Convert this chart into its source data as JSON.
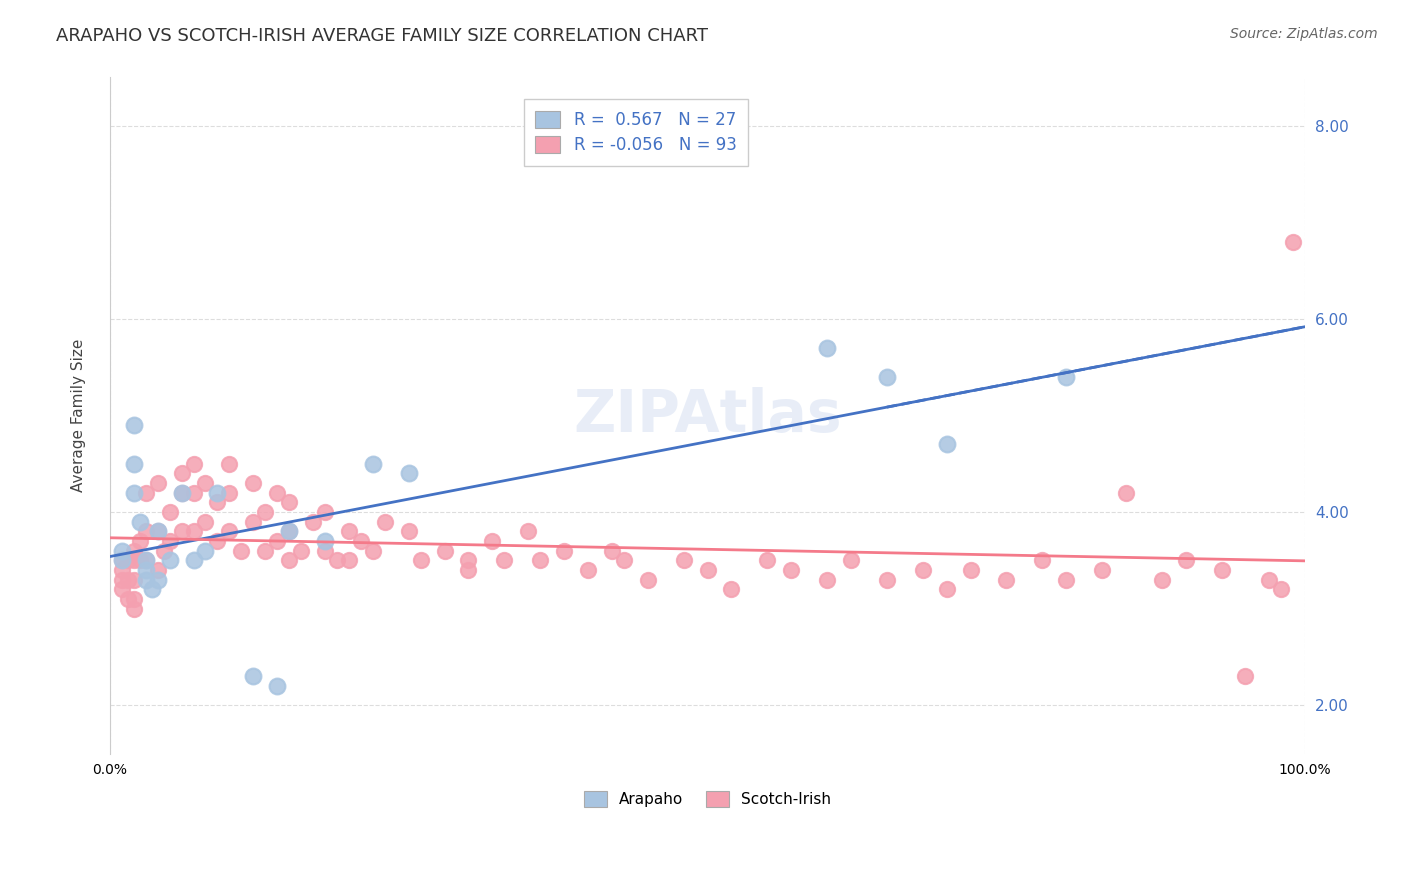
{
  "title": "ARAPAHO VS SCOTCH-IRISH AVERAGE FAMILY SIZE CORRELATION CHART",
  "source": "Source: ZipAtlas.com",
  "xlabel": "",
  "ylabel": "Average Family Size",
  "xlim": [
    0,
    1
  ],
  "ylim": [
    1.5,
    8.5
  ],
  "yticks": [
    2.0,
    4.0,
    6.0,
    8.0
  ],
  "ytick_labels": [
    "2.00",
    "4.00",
    "6.00",
    "8.00"
  ],
  "xtick_labels": [
    "0.0%",
    "100.0%"
  ],
  "background_color": "#ffffff",
  "grid_color": "#dddddd",
  "arapaho_color": "#a8c4e0",
  "scotch_irish_color": "#f4a0b0",
  "arapaho_line_color": "#4472c4",
  "scotch_irish_line_color": "#f47a8a",
  "watermark": "ZIPAtlas",
  "legend_r1": "R =  0.567   N = 27",
  "legend_r2": "R = -0.056   N = 93",
  "arapaho_r": 0.567,
  "arapaho_n": 27,
  "scotch_irish_r": -0.056,
  "scotch_irish_n": 93,
  "arapaho_points_x": [
    0.01,
    0.01,
    0.02,
    0.02,
    0.02,
    0.025,
    0.03,
    0.03,
    0.03,
    0.035,
    0.04,
    0.04,
    0.05,
    0.06,
    0.07,
    0.08,
    0.09,
    0.12,
    0.14,
    0.15,
    0.18,
    0.22,
    0.25,
    0.6,
    0.65,
    0.7,
    0.8
  ],
  "arapaho_points_y": [
    3.6,
    3.5,
    4.9,
    4.5,
    4.2,
    3.9,
    3.5,
    3.4,
    3.3,
    3.2,
    3.8,
    3.3,
    3.5,
    4.2,
    3.5,
    3.6,
    4.2,
    2.3,
    2.2,
    3.8,
    3.7,
    4.5,
    4.4,
    5.7,
    5.4,
    4.7,
    5.4
  ],
  "scotch_irish_points_x": [
    0.01,
    0.01,
    0.01,
    0.01,
    0.015,
    0.015,
    0.015,
    0.02,
    0.02,
    0.02,
    0.02,
    0.02,
    0.025,
    0.025,
    0.03,
    0.03,
    0.03,
    0.04,
    0.04,
    0.04,
    0.045,
    0.05,
    0.05,
    0.06,
    0.06,
    0.06,
    0.07,
    0.07,
    0.07,
    0.08,
    0.08,
    0.09,
    0.09,
    0.1,
    0.1,
    0.1,
    0.11,
    0.12,
    0.12,
    0.13,
    0.13,
    0.14,
    0.14,
    0.15,
    0.15,
    0.15,
    0.16,
    0.17,
    0.18,
    0.18,
    0.19,
    0.2,
    0.2,
    0.21,
    0.22,
    0.23,
    0.25,
    0.26,
    0.28,
    0.3,
    0.3,
    0.32,
    0.33,
    0.35,
    0.36,
    0.38,
    0.4,
    0.42,
    0.43,
    0.45,
    0.48,
    0.5,
    0.52,
    0.55,
    0.57,
    0.6,
    0.62,
    0.65,
    0.68,
    0.7,
    0.72,
    0.75,
    0.78,
    0.8,
    0.83,
    0.85,
    0.88,
    0.9,
    0.93,
    0.95,
    0.97,
    0.98,
    0.99
  ],
  "scotch_irish_points_y": [
    3.5,
    3.4,
    3.3,
    3.2,
    3.5,
    3.3,
    3.1,
    3.6,
    3.5,
    3.3,
    3.1,
    3.0,
    3.7,
    3.5,
    4.2,
    3.8,
    3.5,
    4.3,
    3.8,
    3.4,
    3.6,
    4.0,
    3.7,
    4.4,
    4.2,
    3.8,
    4.5,
    4.2,
    3.8,
    4.3,
    3.9,
    4.1,
    3.7,
    4.5,
    4.2,
    3.8,
    3.6,
    4.3,
    3.9,
    4.0,
    3.6,
    4.2,
    3.7,
    4.1,
    3.8,
    3.5,
    3.6,
    3.9,
    4.0,
    3.6,
    3.5,
    3.8,
    3.5,
    3.7,
    3.6,
    3.9,
    3.8,
    3.5,
    3.6,
    3.5,
    3.4,
    3.7,
    3.5,
    3.8,
    3.5,
    3.6,
    3.4,
    3.6,
    3.5,
    3.3,
    3.5,
    3.4,
    3.2,
    3.5,
    3.4,
    3.3,
    3.5,
    3.3,
    3.4,
    3.2,
    3.4,
    3.3,
    3.5,
    3.3,
    3.4,
    4.2,
    3.3,
    3.5,
    3.4,
    2.3,
    3.3,
    3.2,
    6.8
  ],
  "title_fontsize": 13,
  "label_fontsize": 11,
  "tick_fontsize": 10,
  "legend_fontsize": 12,
  "source_fontsize": 10
}
